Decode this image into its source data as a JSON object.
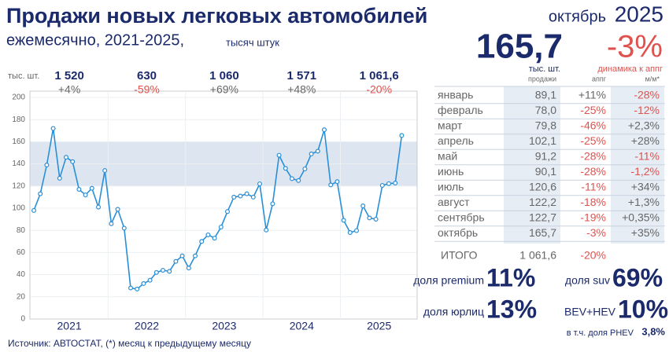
{
  "header": {
    "title": "Продажи новых легковых автомобилей",
    "subtitle": "ежемесячно, 2021-2025,",
    "unit": "тысяч штук",
    "month": "октябрь",
    "year": "2025"
  },
  "headline": {
    "value": "165,7",
    "unit": "тыс. шт.",
    "change": "-3%",
    "change_label": "динамика к аппг"
  },
  "yearly": {
    "unit": "тыс. шт.",
    "items": [
      {
        "total": "1 520",
        "change": "+4%"
      },
      {
        "total": "630",
        "change": "-59%"
      },
      {
        "total": "1 060",
        "change": "+69%"
      },
      {
        "total": "1 571",
        "change": "+48%"
      },
      {
        "total": "1 061,6",
        "change": "-20%"
      }
    ]
  },
  "chart_data": {
    "type": "line",
    "categories": [
      "2021",
      "2022",
      "2023",
      "2024",
      "2025"
    ],
    "values": [
      [
        98,
        113,
        139,
        172,
        127,
        146,
        142,
        117,
        112,
        118,
        101,
        134
      ],
      [
        86,
        99,
        82,
        28,
        27,
        32,
        35,
        42,
        44,
        43,
        52,
        57
      ],
      [
        46,
        57,
        70,
        76,
        73,
        83,
        97,
        110,
        111,
        113,
        110,
        122
      ],
      [
        80.3,
        104,
        147.8,
        136,
        126.7,
        125,
        135.5,
        149,
        151.5,
        170.8,
        121,
        124
      ],
      [
        89.1,
        78.0,
        79.8,
        102.1,
        91.2,
        90.1,
        120.6,
        122.2,
        122.7,
        165.7
      ]
    ],
    "color": "#2a8fd6",
    "ylim": [
      0,
      200
    ],
    "yticks": [
      0,
      20,
      40,
      60,
      80,
      100,
      120,
      140,
      160,
      180,
      200
    ],
    "highlight_band": [
      120,
      160
    ],
    "grid": true
  },
  "table": {
    "columns": [
      "продажи",
      "аппг",
      "м/м*"
    ],
    "rows": [
      [
        "январь",
        "89,1",
        "+11%",
        "-28%"
      ],
      [
        "февраль",
        "78,0",
        "-25%",
        "-12%"
      ],
      [
        "март",
        "79,8",
        "-46%",
        "+2,3%"
      ],
      [
        "апрель",
        "102,1",
        "-25%",
        "+28%"
      ],
      [
        "май",
        "91,2",
        "-28%",
        "-11%"
      ],
      [
        "июнь",
        "90,1",
        "-28%",
        "-1,2%"
      ],
      [
        "июль",
        "120,6",
        "-11%",
        "+34%"
      ],
      [
        "август",
        "122,2",
        "-18%",
        "+1,3%"
      ],
      [
        "сентябрь",
        "122,7",
        "-19%",
        "+0,35%"
      ],
      [
        "октябрь",
        "165,7",
        "-3%",
        "+35%"
      ]
    ],
    "total": [
      "ИТОГО",
      "1 061,6",
      "-20%"
    ]
  },
  "shares": {
    "premium": {
      "label": "доля premium",
      "value": "11%"
    },
    "suv": {
      "label": "доля suv",
      "value": "69%"
    },
    "corporate": {
      "label": "доля юрлиц",
      "value": "13%"
    },
    "bev_hev": {
      "label": "BEV+HEV",
      "value": "10%"
    },
    "phev": {
      "label": "в т.ч. доля PHEV",
      "value": "3,8%"
    }
  },
  "footer": "Источник: АВТОСТАТ, (*) месяц к предыдущему месяцу"
}
